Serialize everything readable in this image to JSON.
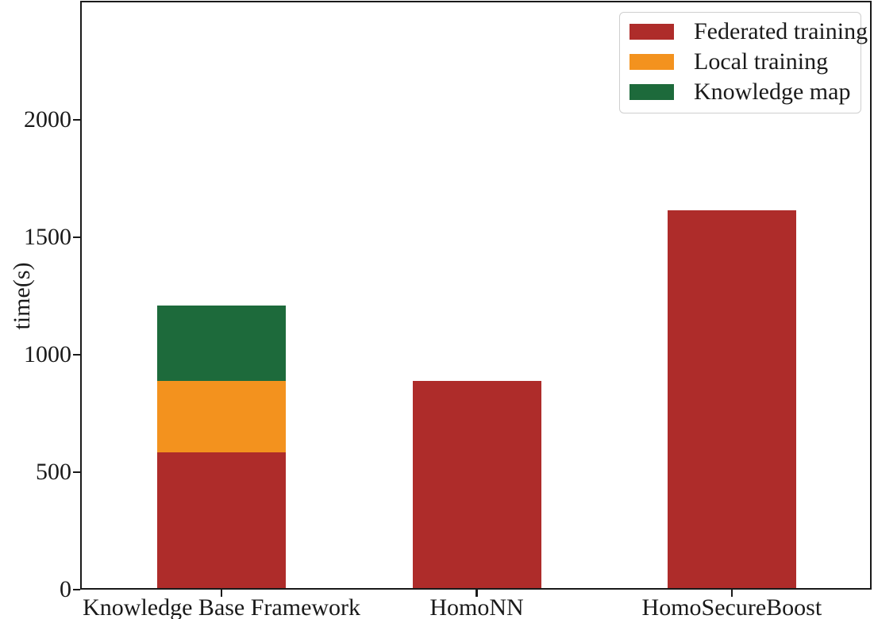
{
  "chart_data": {
    "type": "bar",
    "stacked": true,
    "title": "",
    "xlabel": "",
    "ylabel": "time(s)",
    "ylim": [
      0,
      2500
    ],
    "yticks": [
      0,
      500,
      1000,
      1500,
      2000
    ],
    "categories": [
      "Knowledge Base Framework",
      "HomoNN",
      "HomoSecureBoost"
    ],
    "series": [
      {
        "name": "Federated training",
        "color": "#ae2c2a",
        "values": [
          585,
          890,
          1615
        ]
      },
      {
        "name": "Local training",
        "color": "#f3921e",
        "values": [
          305,
          0,
          0
        ]
      },
      {
        "name": "Knowledge map",
        "color": "#1d6a3b",
        "values": [
          320,
          0,
          0
        ]
      }
    ],
    "legend": {
      "position": "upper right",
      "entries": [
        "Federated training",
        "Local training",
        "Knowledge map"
      ]
    },
    "grid": false,
    "axis_color": "#1a1a1a",
    "background_color": "#ffffff"
  }
}
